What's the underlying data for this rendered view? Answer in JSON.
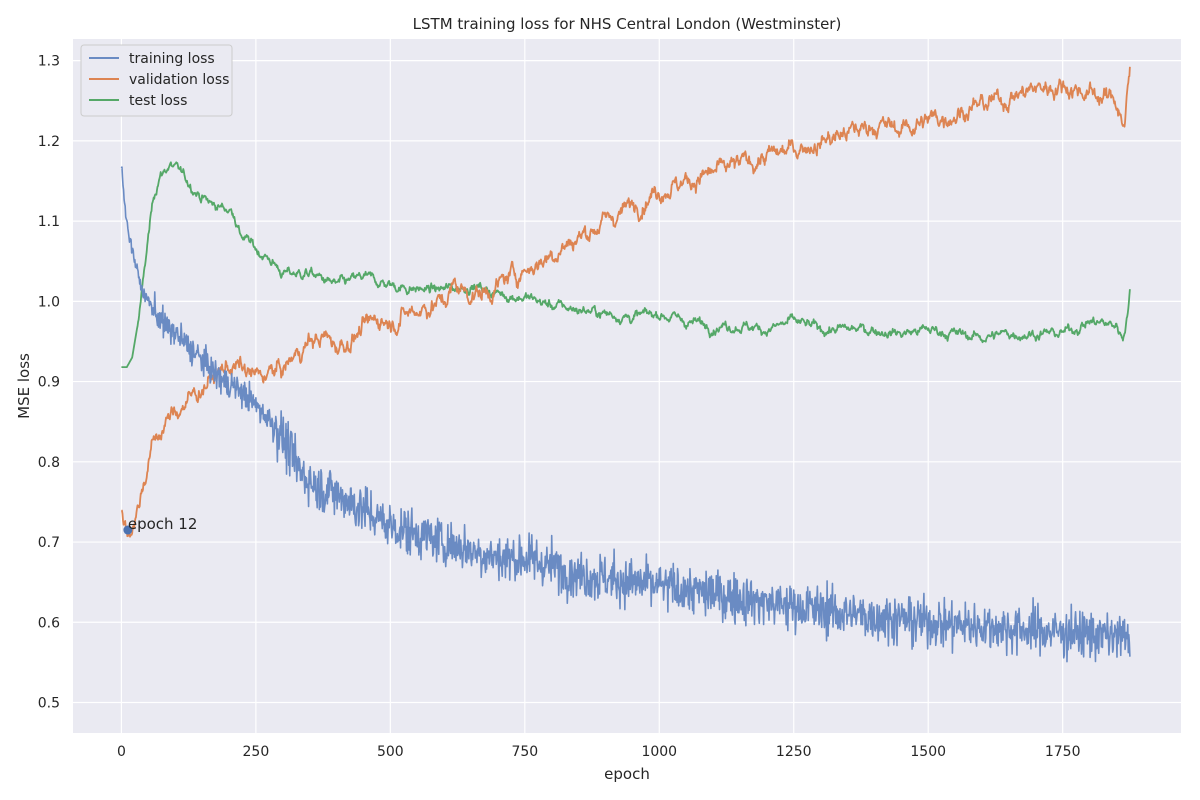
{
  "chart_data": {
    "type": "line",
    "title": "LSTM training loss for NHS Central London (Westminster)",
    "xlabel": "epoch",
    "ylabel": "MSE loss",
    "xlim": [
      -90,
      1970
    ],
    "ylim": [
      0.462,
      1.327
    ],
    "xticks": [
      0,
      250,
      500,
      750,
      1000,
      1250,
      1500,
      1750
    ],
    "yticks": [
      0.5,
      0.6,
      0.7,
      0.8,
      0.9,
      1.0,
      1.1,
      1.2,
      1.3
    ],
    "grid": true,
    "legend_position": "top-left",
    "series": [
      {
        "name": "training loss",
        "color": "#6a8bc3",
        "noise": 0.03,
        "x": [
          0,
          5,
          12,
          25,
          40,
          60,
          80,
          100,
          130,
          160,
          190,
          220,
          250,
          280,
          300,
          330,
          360,
          400,
          450,
          500,
          550,
          600,
          650,
          700,
          750,
          800,
          850,
          900,
          950,
          1000,
          1100,
          1200,
          1300,
          1400,
          1500,
          1600,
          1700,
          1800,
          1875
        ],
        "y": [
          1.17,
          1.13,
          1.09,
          1.05,
          1.01,
          0.99,
          0.97,
          0.96,
          0.94,
          0.92,
          0.9,
          0.89,
          0.87,
          0.85,
          0.83,
          0.79,
          0.77,
          0.76,
          0.74,
          0.72,
          0.71,
          0.7,
          0.69,
          0.68,
          0.68,
          0.67,
          0.66,
          0.655,
          0.65,
          0.645,
          0.635,
          0.625,
          0.615,
          0.607,
          0.6,
          0.595,
          0.59,
          0.585,
          0.58
        ]
      },
      {
        "name": "validation loss",
        "color": "#dd8452",
        "noise": 0.009,
        "x": [
          0,
          6,
          12,
          20,
          30,
          40,
          50,
          60,
          80,
          100,
          130,
          160,
          180,
          200,
          220,
          250,
          280,
          300,
          320,
          350,
          380,
          400,
          420,
          450,
          480,
          500,
          550,
          600,
          620,
          650,
          680,
          700,
          720,
          750,
          780,
          800,
          850,
          900,
          950,
          1000,
          1050,
          1100,
          1150,
          1200,
          1250,
          1300,
          1350,
          1400,
          1450,
          1500,
          1550,
          1600,
          1650,
          1700,
          1750,
          1800,
          1850,
          1865,
          1875
        ],
        "y": [
          0.738,
          0.725,
          0.715,
          0.72,
          0.74,
          0.77,
          0.8,
          0.825,
          0.845,
          0.862,
          0.88,
          0.9,
          0.91,
          0.92,
          0.917,
          0.905,
          0.912,
          0.915,
          0.93,
          0.95,
          0.955,
          0.945,
          0.95,
          0.965,
          0.98,
          0.975,
          0.99,
          1.0,
          1.02,
          1.01,
          1.01,
          1.02,
          1.03,
          1.04,
          1.05,
          1.06,
          1.08,
          1.1,
          1.12,
          1.14,
          1.15,
          1.16,
          1.17,
          1.18,
          1.19,
          1.2,
          1.21,
          1.22,
          1.215,
          1.225,
          1.235,
          1.245,
          1.255,
          1.265,
          1.27,
          1.26,
          1.25,
          1.22,
          1.285
        ]
      },
      {
        "name": "test loss",
        "color": "#55a868",
        "noise": 0.005,
        "x": [
          0,
          10,
          20,
          30,
          40,
          50,
          60,
          70,
          90,
          110,
          130,
          150,
          170,
          200,
          210,
          220,
          250,
          280,
          300,
          350,
          400,
          450,
          500,
          550,
          600,
          650,
          700,
          750,
          800,
          850,
          900,
          950,
          1000,
          1050,
          1100,
          1150,
          1200,
          1250,
          1300,
          1350,
          1400,
          1450,
          1500,
          1550,
          1600,
          1650,
          1700,
          1750,
          1800,
          1850,
          1862,
          1870,
          1875
        ],
        "y": [
          0.918,
          0.918,
          0.93,
          0.97,
          1.02,
          1.08,
          1.13,
          1.155,
          1.17,
          1.16,
          1.145,
          1.13,
          1.12,
          1.115,
          1.11,
          1.085,
          1.065,
          1.05,
          1.035,
          1.035,
          1.02,
          1.03,
          1.02,
          1.015,
          1.015,
          1.02,
          1.01,
          1.005,
          0.995,
          0.99,
          0.985,
          0.98,
          0.985,
          0.975,
          0.97,
          0.97,
          0.965,
          0.975,
          0.965,
          0.965,
          0.965,
          0.96,
          0.965,
          0.96,
          0.955,
          0.96,
          0.96,
          0.96,
          0.975,
          0.97,
          0.955,
          0.985,
          1.013
        ]
      }
    ],
    "annotation": {
      "text": "epoch 12",
      "x": 12,
      "y": 0.715,
      "color": "#4c72b0"
    }
  }
}
